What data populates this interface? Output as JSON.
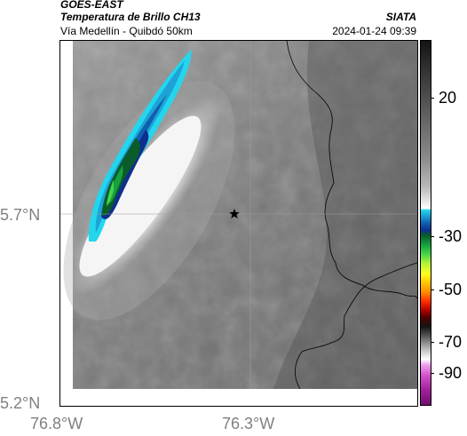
{
  "header": {
    "source": "GOES-EAST",
    "title": "Temperatura de Brillo CH13",
    "agency": "SIATA",
    "subtitle": "Vía Medellín - Quibdó 50km",
    "timestamp": "2024-01-24 09:39"
  },
  "map": {
    "lat_ticks": [
      "5.7°N",
      "5.2°N"
    ],
    "lon_ticks": [
      "76.8°W",
      "76.3°W"
    ],
    "marker_icon": "star-icon"
  },
  "colorbar": {
    "labels": [
      "20",
      "-30",
      "-50",
      "-70",
      "-90"
    ],
    "colors": [
      "#141414",
      "#ffffff",
      "#23d6ee",
      "#1060b0",
      "#15a040",
      "#ffff20",
      "#ff3000",
      "#500000",
      "#d050c8"
    ]
  }
}
